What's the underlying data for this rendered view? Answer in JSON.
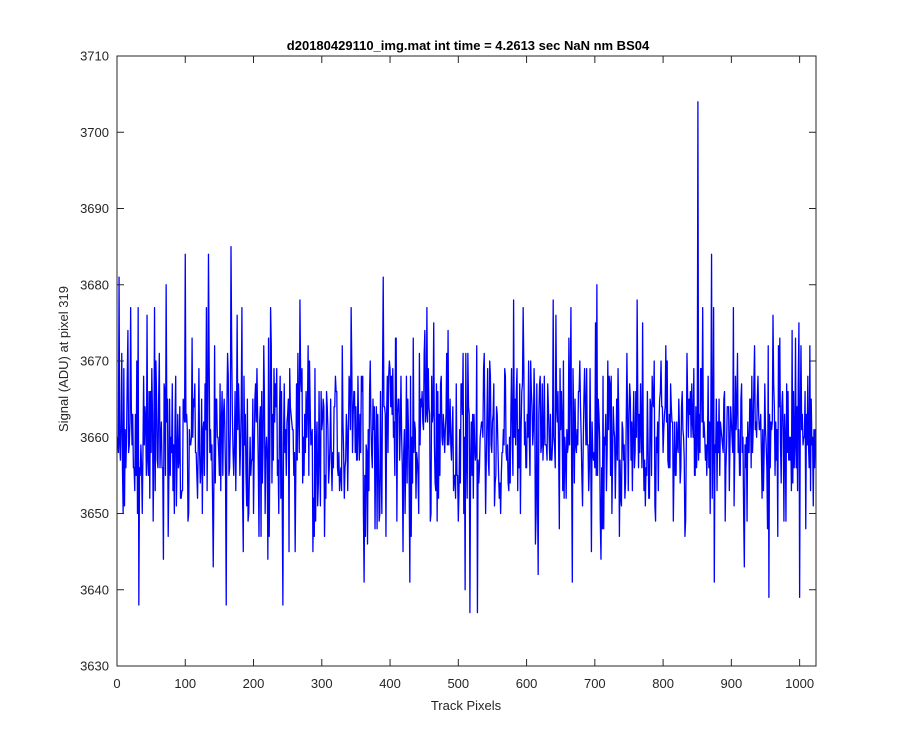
{
  "colors": {
    "line": "#0000ff",
    "axes": "#262626",
    "background": "#ffffff"
  },
  "chart_data": {
    "type": "line",
    "title": "d20180429110_img.mat int time = 4.2613 sec  NaN nm BS04",
    "xlabel": "Track Pixels",
    "ylabel": "Signal (ADU) at pixel 319",
    "xlim": [
      0,
      1024
    ],
    "ylim": [
      3630,
      3710
    ],
    "xticks": [
      0,
      100,
      200,
      300,
      400,
      500,
      600,
      700,
      800,
      900,
      1000
    ],
    "yticks": [
      3630,
      3640,
      3650,
      3660,
      3670,
      3680,
      3690,
      3700,
      3710
    ],
    "grid": false,
    "legend": "none",
    "series": [
      {
        "x_start": 1,
        "x_step": 1,
        "values": []
      }
    ],
    "features": [
      {
        "x": 3,
        "y": 3681
      },
      {
        "x": 9,
        "y": 3650
      },
      {
        "x": 32,
        "y": 3638
      },
      {
        "x": 44,
        "y": 3676
      },
      {
        "x": 72,
        "y": 3680
      },
      {
        "x": 100,
        "y": 3684
      },
      {
        "x": 105,
        "y": 3650
      },
      {
        "x": 134,
        "y": 3684
      },
      {
        "x": 141,
        "y": 3643
      },
      {
        "x": 160,
        "y": 3638
      },
      {
        "x": 167,
        "y": 3685
      },
      {
        "x": 243,
        "y": 3638
      },
      {
        "x": 268,
        "y": 3678
      },
      {
        "x": 362,
        "y": 3641
      },
      {
        "x": 390,
        "y": 3681
      },
      {
        "x": 510,
        "y": 3640
      },
      {
        "x": 517,
        "y": 3637
      },
      {
        "x": 528,
        "y": 3637
      },
      {
        "x": 581,
        "y": 3678
      },
      {
        "x": 639,
        "y": 3678
      },
      {
        "x": 703,
        "y": 3680
      },
      {
        "x": 762,
        "y": 3678
      },
      {
        "x": 851,
        "y": 3704
      },
      {
        "x": 871,
        "y": 3684
      },
      {
        "x": 875,
        "y": 3641
      },
      {
        "x": 919,
        "y": 3643
      },
      {
        "x": 955,
        "y": 3639
      },
      {
        "x": 1000,
        "y": 3639
      }
    ]
  }
}
